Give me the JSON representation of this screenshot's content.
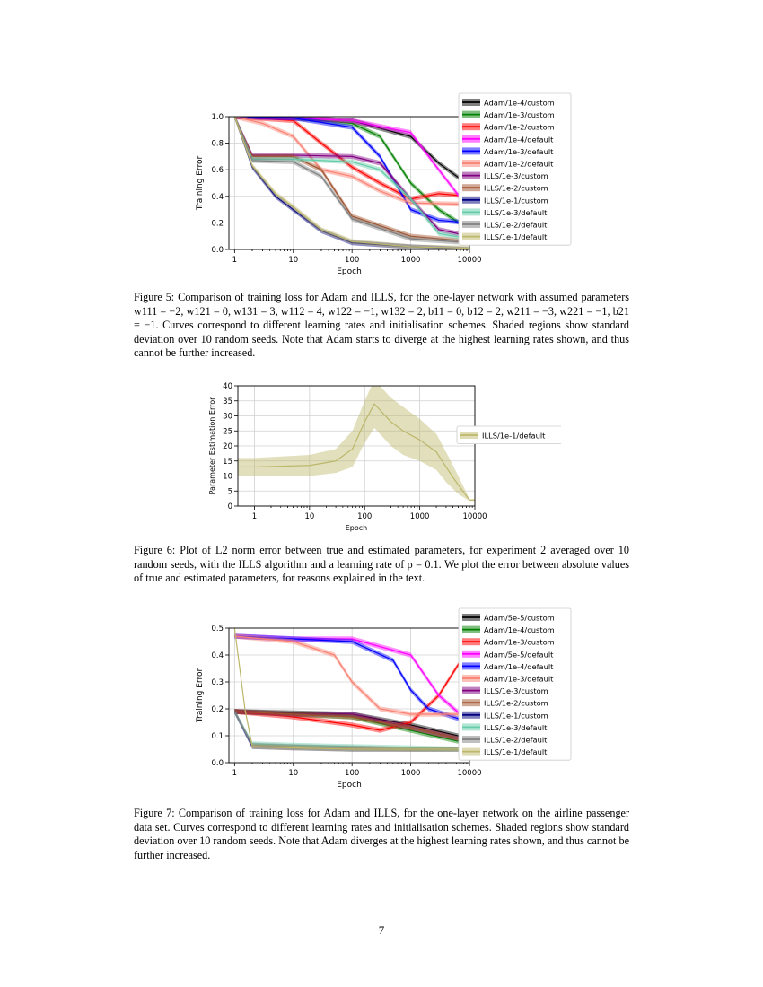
{
  "figures": [
    {
      "caption": "Figure 5: Comparison of training loss for Adam and ILLS, for the one-layer network with assumed parameters w111 = −2, w121 = 0, w131 = 3, w112 = 4, w122 = −1, w132 = 2, b11 = 0, b12 = 2, w211 = −3, w221 = −1, b21 = −1. Curves correspond to different learning rates and initialisation schemes. Shaded regions show standard deviation over 10 random seeds. Note that Adam starts to diverge at the highest learning rates shown, and thus cannot be further increased."
    },
    {
      "caption": "Figure 6: Plot of L2 norm error between true and estimated parameters, for experiment 2 averaged over 10 random seeds, with the ILLS algorithm and a learning rate of ρ = 0.1. We plot the error between absolute values of true and estimated parameters, for reasons explained in the text."
    },
    {
      "caption": "Figure 7: Comparison of training loss for Adam and ILLS, for the one-layer network on the airline passenger data set. Curves correspond to different learning rates and initialisation schemes. Shaded regions show standard deviation over 10 random seeds. Note that Adam diverges at the highest learning rates shown, and thus cannot be further increased."
    }
  ],
  "page_number": "7",
  "chart_data": [
    {
      "type": "line",
      "xscale": "log",
      "xlabel": "Epoch",
      "ylabel": "Training Error",
      "xlim": [
        0.8,
        10000
      ],
      "ylim": [
        0,
        1.0
      ],
      "xticks": [
        "1",
        "10",
        "100",
        "1000",
        "10000"
      ],
      "yticks": [
        "0.0",
        "0.2",
        "0.4",
        "0.6",
        "0.8",
        "1.0"
      ],
      "grid": true,
      "legend_position": "outside-right",
      "series": [
        {
          "name": "Adam/1e-4/custom",
          "color": "#000000",
          "x": [
            1,
            10,
            100,
            1000,
            3000,
            10000
          ],
          "y": [
            1.0,
            0.99,
            0.97,
            0.85,
            0.65,
            0.48
          ]
        },
        {
          "name": "Adam/1e-3/custom",
          "color": "#008000",
          "x": [
            1,
            10,
            100,
            300,
            1000,
            3000,
            10000
          ],
          "y": [
            1.0,
            0.99,
            0.95,
            0.85,
            0.5,
            0.3,
            0.15
          ]
        },
        {
          "name": "Adam/1e-2/custom",
          "color": "#ff0000",
          "x": [
            1,
            10,
            30,
            100,
            300,
            1000,
            3000,
            10000
          ],
          "y": [
            1.0,
            0.97,
            0.8,
            0.62,
            0.5,
            0.38,
            0.42,
            0.4
          ]
        },
        {
          "name": "Adam/1e-4/default",
          "color": "#ff00ff",
          "x": [
            1,
            10,
            100,
            1000,
            3000,
            10000
          ],
          "y": [
            1.0,
            0.99,
            0.97,
            0.88,
            0.6,
            0.3
          ]
        },
        {
          "name": "Adam/1e-3/default",
          "color": "#0000ff",
          "x": [
            1,
            10,
            100,
            300,
            1000,
            3000,
            10000
          ],
          "y": [
            1.0,
            0.99,
            0.92,
            0.7,
            0.3,
            0.22,
            0.2
          ]
        },
        {
          "name": "Adam/1e-2/default",
          "color": "#fa8072",
          "x": [
            1,
            3,
            10,
            30,
            100,
            300,
            1000,
            10000
          ],
          "y": [
            1.0,
            0.95,
            0.85,
            0.6,
            0.55,
            0.44,
            0.35,
            0.34
          ]
        },
        {
          "name": "ILLS/1e-3/custom",
          "color": "#800080",
          "x": [
            1,
            2,
            10,
            100,
            300,
            1000,
            3000,
            10000
          ],
          "y": [
            1.0,
            0.71,
            0.71,
            0.7,
            0.65,
            0.38,
            0.15,
            0.1
          ]
        },
        {
          "name": "ILLS/1e-2/custom",
          "color": "#a0522d",
          "x": [
            1,
            2,
            10,
            30,
            100,
            1000,
            10000
          ],
          "y": [
            1.0,
            0.7,
            0.7,
            0.6,
            0.25,
            0.1,
            0.06
          ]
        },
        {
          "name": "ILLS/1e-1/custom",
          "color": "#000080",
          "x": [
            1,
            2,
            5,
            10,
            30,
            100,
            1000,
            10000
          ],
          "y": [
            1.0,
            0.62,
            0.4,
            0.3,
            0.14,
            0.05,
            0.02,
            0.0
          ]
        },
        {
          "name": "ILLS/1e-3/default",
          "color": "#66cdaa",
          "x": [
            1,
            2,
            10,
            100,
            300,
            1000,
            3000,
            10000
          ],
          "y": [
            1.0,
            0.68,
            0.68,
            0.66,
            0.6,
            0.38,
            0.12,
            0.08
          ]
        },
        {
          "name": "ILLS/1e-2/default",
          "color": "#808080",
          "x": [
            1,
            2,
            10,
            30,
            100,
            1000,
            10000
          ],
          "y": [
            1.0,
            0.67,
            0.66,
            0.55,
            0.23,
            0.08,
            0.05
          ]
        },
        {
          "name": "ILLS/1e-1/default",
          "color": "#bdb76b",
          "x": [
            1,
            2,
            5,
            10,
            30,
            100,
            1000,
            10000
          ],
          "y": [
            1.0,
            0.63,
            0.42,
            0.32,
            0.15,
            0.06,
            0.02,
            0.01
          ]
        }
      ]
    },
    {
      "type": "line",
      "xscale": "log",
      "xlabel": "Epoch",
      "ylabel": "Parameter Estimation Error",
      "xlim": [
        0.5,
        10000
      ],
      "ylim": [
        0,
        40
      ],
      "xticks": [
        "1",
        "10",
        "100",
        "1000",
        "10000"
      ],
      "yticks": [
        "0",
        "5",
        "10",
        "15",
        "20",
        "25",
        "30",
        "35",
        "40"
      ],
      "grid": true,
      "legend_position": "outside-right",
      "series": [
        {
          "name": "ILLS/1e-1/default",
          "color": "#bdb76b",
          "x": [
            0.5,
            1,
            10,
            30,
            60,
            100,
            150,
            300,
            500,
            1000,
            2000,
            3000,
            5000,
            8000,
            10000
          ],
          "y": [
            13,
            13,
            13.5,
            15,
            19,
            28,
            34,
            28,
            25,
            22,
            18,
            13,
            7,
            2,
            2
          ],
          "band": [
            3,
            3,
            3.5,
            4,
            6,
            7,
            8,
            8,
            8,
            7,
            6,
            5,
            3,
            0.3,
            0.3
          ]
        }
      ]
    },
    {
      "type": "line",
      "xscale": "log",
      "xlabel": "Epoch",
      "ylabel": "Training Error",
      "xlim": [
        0.8,
        10000
      ],
      "ylim": [
        0,
        0.5
      ],
      "xticks": [
        "1",
        "10",
        "100",
        "1000",
        "10000"
      ],
      "yticks": [
        "0.0",
        "0.1",
        "0.2",
        "0.3",
        "0.4",
        "0.5"
      ],
      "grid": true,
      "legend_position": "outside-right",
      "series": [
        {
          "name": "Adam/5e-5/custom",
          "color": "#000000",
          "x": [
            1,
            10,
            100,
            1000,
            10000
          ],
          "y": [
            0.19,
            0.185,
            0.18,
            0.14,
            0.09
          ]
        },
        {
          "name": "Adam/1e-4/custom",
          "color": "#008000",
          "x": [
            1,
            10,
            100,
            1000,
            10000
          ],
          "y": [
            0.19,
            0.18,
            0.17,
            0.12,
            0.07
          ]
        },
        {
          "name": "Adam/1e-3/custom",
          "color": "#ff0000",
          "x": [
            1,
            10,
            100,
            300,
            1000,
            3000,
            10000
          ],
          "y": [
            0.19,
            0.17,
            0.14,
            0.12,
            0.15,
            0.25,
            0.43
          ]
        },
        {
          "name": "Adam/5e-5/default",
          "color": "#ff00ff",
          "x": [
            1,
            10,
            100,
            1000,
            3000,
            10000
          ],
          "y": [
            0.47,
            0.46,
            0.46,
            0.4,
            0.25,
            0.15
          ]
        },
        {
          "name": "Adam/1e-4/default",
          "color": "#0000ff",
          "x": [
            1,
            10,
            100,
            500,
            1000,
            2000,
            10000
          ],
          "y": [
            0.47,
            0.46,
            0.45,
            0.38,
            0.27,
            0.2,
            0.15
          ]
        },
        {
          "name": "Adam/1e-3/default",
          "color": "#fa8072",
          "x": [
            1,
            10,
            50,
            100,
            300,
            1000,
            10000
          ],
          "y": [
            0.47,
            0.45,
            0.4,
            0.3,
            0.2,
            0.18,
            0.18
          ]
        },
        {
          "name": "ILLS/1e-3/custom",
          "color": "#800080",
          "x": [
            1,
            10,
            100,
            1000,
            10000
          ],
          "y": [
            0.19,
            0.18,
            0.18,
            0.13,
            0.08
          ]
        },
        {
          "name": "ILLS/1e-2/custom",
          "color": "#a0522d",
          "x": [
            1,
            10,
            100,
            1000,
            10000
          ],
          "y": [
            0.19,
            0.18,
            0.17,
            0.13,
            0.08
          ]
        },
        {
          "name": "ILLS/1e-1/custom",
          "color": "#000080",
          "x": [
            1,
            2,
            10,
            100,
            1000,
            10000
          ],
          "y": [
            0.19,
            0.06,
            0.055,
            0.05,
            0.05,
            0.05
          ]
        },
        {
          "name": "ILLS/1e-3/default",
          "color": "#66cdaa",
          "x": [
            1,
            2,
            10,
            100,
            1000,
            10000
          ],
          "y": [
            0.19,
            0.07,
            0.065,
            0.06,
            0.055,
            0.05
          ]
        },
        {
          "name": "ILLS/1e-2/default",
          "color": "#808080",
          "x": [
            1,
            2,
            10,
            100,
            1000,
            10000
          ],
          "y": [
            0.19,
            0.065,
            0.06,
            0.055,
            0.05,
            0.05
          ]
        },
        {
          "name": "ILLS/1e-1/default",
          "color": "#bdb76b",
          "x": [
            1,
            1.5,
            2,
            10,
            100,
            1000,
            10000
          ],
          "y": [
            0.5,
            0.2,
            0.06,
            0.055,
            0.05,
            0.05,
            0.05
          ]
        }
      ]
    }
  ]
}
